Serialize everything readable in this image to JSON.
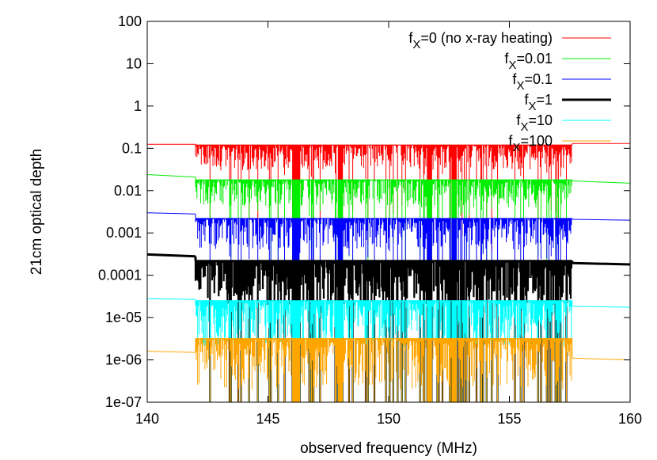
{
  "chart_data": {
    "type": "line",
    "xlabel": "observed frequency (MHz)",
    "ylabel": "21cm optical depth",
    "xlim": [
      140,
      160
    ],
    "ylim": [
      1e-07,
      100
    ],
    "yscale": "log",
    "x_ticks": [
      140,
      145,
      150,
      155,
      160
    ],
    "x_tick_labels": [
      "140",
      "145",
      "150",
      "155",
      "160"
    ],
    "y_ticks": [
      1e-07,
      1e-06,
      1e-05,
      0.0001,
      0.001,
      0.01,
      0.1,
      1,
      10,
      100
    ],
    "y_tick_labels": [
      "1e-07",
      "1e-06",
      "1e-05",
      "0.0001",
      "0.001",
      "0.01",
      "0.1",
      "1",
      "10",
      "100"
    ],
    "grid": false,
    "legend_position": "top-right",
    "forest_range": [
      142.0,
      157.6
    ],
    "series": [
      {
        "name_main": "f",
        "name_sub": "X",
        "name_rest": "=0 (no x-ray heating)",
        "color": "#ff0000",
        "width": 1,
        "x": [
          140,
          142,
          142.0,
          157.6,
          157.6,
          160
        ],
        "y": [
          0.125,
          0.125,
          null,
          null,
          0.13,
          0.13
        ],
        "forest_level": 0.12,
        "forest_floor": 0.03
      },
      {
        "name_main": "f",
        "name_sub": "X",
        "name_rest": "=0.01",
        "color": "#00ee00",
        "width": 1,
        "x": [
          140,
          142,
          142.0,
          157.6,
          157.6,
          160
        ],
        "y": [
          0.024,
          0.021,
          null,
          null,
          0.017,
          0.015
        ],
        "forest_level": 0.018,
        "forest_floor": 0.004
      },
      {
        "name_main": "f",
        "name_sub": "X",
        "name_rest": "=0.1",
        "color": "#0000ff",
        "width": 1,
        "x": [
          140,
          142,
          142.0,
          157.6,
          157.6,
          160
        ],
        "y": [
          0.003,
          0.0028,
          null,
          null,
          0.0021,
          0.002
        ],
        "forest_level": 0.0022,
        "forest_floor": 0.0004
      },
      {
        "name_main": "f",
        "name_sub": "X",
        "name_rest": "=1",
        "color": "#000000",
        "width": 3,
        "x": [
          140,
          142,
          142.0,
          157.6,
          157.6,
          160
        ],
        "y": [
          0.00031,
          0.00028,
          null,
          null,
          0.000195,
          0.00018
        ],
        "forest_level": 0.00022,
        "forest_floor": 2e-05
      },
      {
        "name_main": "f",
        "name_sub": "X",
        "name_rest": "=10",
        "color": "#00ffff",
        "width": 1,
        "x": [
          140,
          142,
          142.0,
          157.6,
          157.6,
          160
        ],
        "y": [
          2.8e-05,
          2.7e-05,
          null,
          null,
          1.85e-05,
          1.75e-05
        ],
        "forest_level": 2.5e-05,
        "forest_floor": 2e-06
      },
      {
        "name_main": "f",
        "name_sub": "X",
        "name_rest": "=100",
        "color": "#ffa500",
        "width": 1,
        "x": [
          140,
          142,
          142.0,
          157.6,
          157.6,
          160
        ],
        "y": [
          1.6e-06,
          1.5e-06,
          null,
          null,
          1.1e-06,
          1e-06
        ],
        "forest_level": 3.2e-06,
        "forest_floor": 2e-07
      }
    ]
  }
}
